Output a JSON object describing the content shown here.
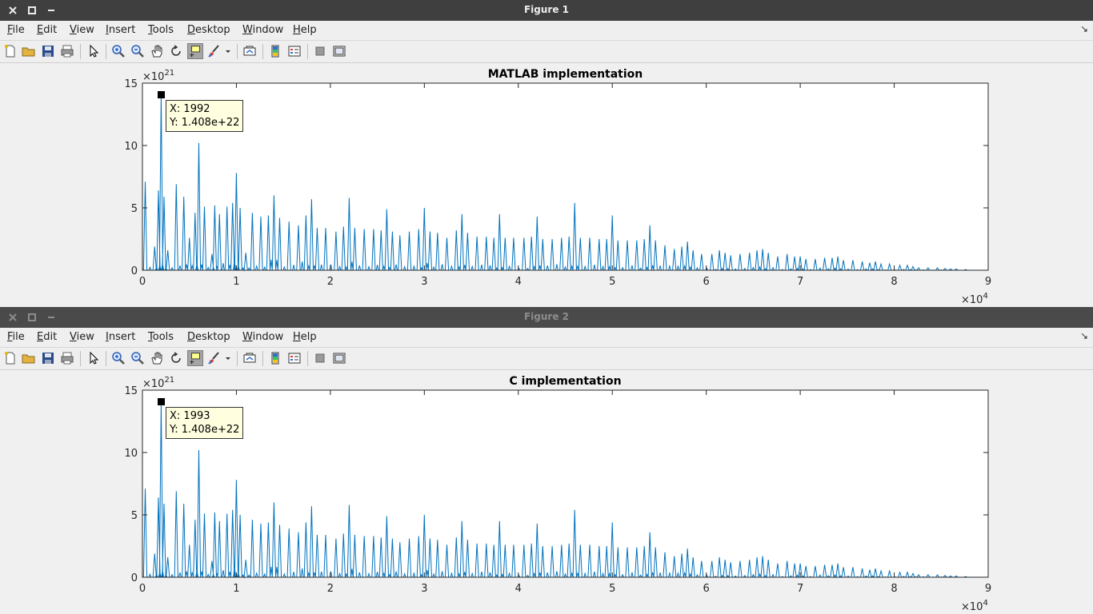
{
  "menu": [
    "File",
    "Edit",
    "View",
    "Insert",
    "Tools",
    "Desktop",
    "Window",
    "Help"
  ],
  "figures": [
    {
      "window_title": "Figure 1",
      "datatip": {
        "x_text": "X: 1992",
        "y_text": "Y: 1.408e+22"
      },
      "chart_data": {
        "type": "line",
        "title": "MATLAB implementation",
        "xlabel": "",
        "ylabel": "",
        "xlim": [
          0,
          9
        ],
        "ylim": [
          0,
          15
        ],
        "x_multiplier": "×10^4",
        "y_multiplier": "×10^21",
        "x_ticks": [
          "0",
          "1",
          "2",
          "3",
          "4",
          "5",
          "6",
          "7",
          "8",
          "9"
        ],
        "y_ticks": [
          "0",
          "5",
          "10",
          "15"
        ],
        "color": "#0072bd",
        "peaks": [
          [
            0.03,
            7.1
          ],
          [
            0.13,
            1.9
          ],
          [
            0.17,
            6.4
          ],
          [
            0.1992,
            14.08
          ],
          [
            0.23,
            5.9
          ],
          [
            0.27,
            1.6
          ],
          [
            0.36,
            6.9
          ],
          [
            0.44,
            5.9
          ],
          [
            0.5,
            2.6
          ],
          [
            0.56,
            4.6
          ],
          [
            0.6,
            10.2
          ],
          [
            0.66,
            5.1
          ],
          [
            0.74,
            1.3
          ],
          [
            0.77,
            5.2
          ],
          [
            0.82,
            4.5
          ],
          [
            0.9,
            5.1
          ],
          [
            0.96,
            5.4
          ],
          [
            1.0,
            7.8
          ],
          [
            1.04,
            5.0
          ],
          [
            1.1,
            1.4
          ],
          [
            1.17,
            4.6
          ],
          [
            1.26,
            4.3
          ],
          [
            1.34,
            4.4
          ],
          [
            1.4,
            6.0
          ],
          [
            1.46,
            4.2
          ],
          [
            1.56,
            3.9
          ],
          [
            1.66,
            3.6
          ],
          [
            1.74,
            4.4
          ],
          [
            1.8,
            5.7
          ],
          [
            1.86,
            3.4
          ],
          [
            1.95,
            3.4
          ],
          [
            2.06,
            3.1
          ],
          [
            2.14,
            3.5
          ],
          [
            2.2,
            5.8
          ],
          [
            2.26,
            3.4
          ],
          [
            2.36,
            3.3
          ],
          [
            2.46,
            3.3
          ],
          [
            2.54,
            3.2
          ],
          [
            2.6,
            4.9
          ],
          [
            2.66,
            3.1
          ],
          [
            2.74,
            2.8
          ],
          [
            2.84,
            3.1
          ],
          [
            2.94,
            3.3
          ],
          [
            3.0,
            5.0
          ],
          [
            3.06,
            3.1
          ],
          [
            3.14,
            3.0
          ],
          [
            3.24,
            2.6
          ],
          [
            3.34,
            3.2
          ],
          [
            3.4,
            4.5
          ],
          [
            3.46,
            3.0
          ],
          [
            3.56,
            2.7
          ],
          [
            3.66,
            2.7
          ],
          [
            3.74,
            2.6
          ],
          [
            3.8,
            4.5
          ],
          [
            3.86,
            2.6
          ],
          [
            3.95,
            2.6
          ],
          [
            4.06,
            2.6
          ],
          [
            4.14,
            2.7
          ],
          [
            4.2,
            4.3
          ],
          [
            4.26,
            2.5
          ],
          [
            4.36,
            2.5
          ],
          [
            4.46,
            2.6
          ],
          [
            4.54,
            2.7
          ],
          [
            4.6,
            5.4
          ],
          [
            4.66,
            2.6
          ],
          [
            4.76,
            2.6
          ],
          [
            4.86,
            2.5
          ],
          [
            4.94,
            2.5
          ],
          [
            5.0,
            4.4
          ],
          [
            5.06,
            2.4
          ],
          [
            5.16,
            2.4
          ],
          [
            5.26,
            2.4
          ],
          [
            5.34,
            2.5
          ],
          [
            5.4,
            3.6
          ],
          [
            5.46,
            2.4
          ],
          [
            5.56,
            2.0
          ],
          [
            5.66,
            1.7
          ],
          [
            5.74,
            1.9
          ],
          [
            5.8,
            2.3
          ],
          [
            5.86,
            1.6
          ],
          [
            5.95,
            1.3
          ],
          [
            6.06,
            1.3
          ],
          [
            6.14,
            1.6
          ],
          [
            6.2,
            1.4
          ],
          [
            6.26,
            1.2
          ],
          [
            6.36,
            1.3
          ],
          [
            6.46,
            1.4
          ],
          [
            6.54,
            1.6
          ],
          [
            6.6,
            1.7
          ],
          [
            6.66,
            1.4
          ],
          [
            6.76,
            1.1
          ],
          [
            6.86,
            1.3
          ],
          [
            6.94,
            1.1
          ],
          [
            7.0,
            1.1
          ],
          [
            7.06,
            0.9
          ],
          [
            7.16,
            0.9
          ],
          [
            7.26,
            1.0
          ],
          [
            7.34,
            1.0
          ],
          [
            7.4,
            1.1
          ],
          [
            7.46,
            0.8
          ],
          [
            7.56,
            0.8
          ],
          [
            7.66,
            0.7
          ],
          [
            7.74,
            0.6
          ],
          [
            7.8,
            0.7
          ],
          [
            7.86,
            0.5
          ],
          [
            7.95,
            0.5
          ],
          [
            8.06,
            0.4
          ],
          [
            8.14,
            0.4
          ],
          [
            8.2,
            0.3
          ],
          [
            8.26,
            0.2
          ],
          [
            8.36,
            0.2
          ],
          [
            8.46,
            0.2
          ],
          [
            8.54,
            0.15
          ],
          [
            8.6,
            0.1
          ],
          [
            8.66,
            0.1
          ],
          [
            8.76,
            0.05
          ]
        ]
      }
    },
    {
      "window_title": "Figure 2",
      "datatip": {
        "x_text": "X: 1993",
        "y_text": "Y: 1.408e+22"
      },
      "chart_data": {
        "type": "line",
        "title": "C implementation",
        "xlabel": "",
        "ylabel": "",
        "xlim": [
          0,
          9
        ],
        "ylim": [
          0,
          15
        ],
        "x_multiplier": "×10^4",
        "y_multiplier": "×10^21",
        "x_ticks": [
          "0",
          "1",
          "2",
          "3",
          "4",
          "5",
          "6",
          "7",
          "8",
          "9"
        ],
        "y_ticks": [
          "0",
          "5",
          "10",
          "15"
        ],
        "color": "#0072bd",
        "peaks": [
          [
            0.03,
            7.1
          ],
          [
            0.13,
            1.9
          ],
          [
            0.17,
            6.4
          ],
          [
            0.1993,
            14.08
          ],
          [
            0.23,
            5.9
          ],
          [
            0.27,
            1.6
          ],
          [
            0.36,
            6.9
          ],
          [
            0.44,
            5.9
          ],
          [
            0.5,
            2.6
          ],
          [
            0.56,
            4.6
          ],
          [
            0.6,
            10.2
          ],
          [
            0.66,
            5.1
          ],
          [
            0.74,
            1.3
          ],
          [
            0.77,
            5.2
          ],
          [
            0.82,
            4.5
          ],
          [
            0.9,
            5.1
          ],
          [
            0.96,
            5.4
          ],
          [
            1.0,
            7.8
          ],
          [
            1.04,
            5.0
          ],
          [
            1.1,
            1.4
          ],
          [
            1.17,
            4.6
          ],
          [
            1.26,
            4.3
          ],
          [
            1.34,
            4.4
          ],
          [
            1.4,
            6.0
          ],
          [
            1.46,
            4.2
          ],
          [
            1.56,
            3.9
          ],
          [
            1.66,
            3.6
          ],
          [
            1.74,
            4.4
          ],
          [
            1.8,
            5.7
          ],
          [
            1.86,
            3.4
          ],
          [
            1.95,
            3.4
          ],
          [
            2.06,
            3.1
          ],
          [
            2.14,
            3.5
          ],
          [
            2.2,
            5.8
          ],
          [
            2.26,
            3.4
          ],
          [
            2.36,
            3.3
          ],
          [
            2.46,
            3.3
          ],
          [
            2.54,
            3.2
          ],
          [
            2.6,
            4.9
          ],
          [
            2.66,
            3.1
          ],
          [
            2.74,
            2.8
          ],
          [
            2.84,
            3.1
          ],
          [
            2.94,
            3.3
          ],
          [
            3.0,
            5.0
          ],
          [
            3.06,
            3.1
          ],
          [
            3.14,
            3.0
          ],
          [
            3.24,
            2.6
          ],
          [
            3.34,
            3.2
          ],
          [
            3.4,
            4.5
          ],
          [
            3.46,
            3.0
          ],
          [
            3.56,
            2.7
          ],
          [
            3.66,
            2.7
          ],
          [
            3.74,
            2.6
          ],
          [
            3.8,
            4.5
          ],
          [
            3.86,
            2.6
          ],
          [
            3.95,
            2.6
          ],
          [
            4.06,
            2.6
          ],
          [
            4.14,
            2.7
          ],
          [
            4.2,
            4.3
          ],
          [
            4.26,
            2.5
          ],
          [
            4.36,
            2.5
          ],
          [
            4.46,
            2.6
          ],
          [
            4.54,
            2.7
          ],
          [
            4.6,
            5.4
          ],
          [
            4.66,
            2.6
          ],
          [
            4.76,
            2.6
          ],
          [
            4.86,
            2.5
          ],
          [
            4.94,
            2.5
          ],
          [
            5.0,
            4.4
          ],
          [
            5.06,
            2.4
          ],
          [
            5.16,
            2.4
          ],
          [
            5.26,
            2.4
          ],
          [
            5.34,
            2.5
          ],
          [
            5.4,
            3.6
          ],
          [
            5.46,
            2.4
          ],
          [
            5.56,
            2.0
          ],
          [
            5.66,
            1.7
          ],
          [
            5.74,
            1.9
          ],
          [
            5.8,
            2.3
          ],
          [
            5.86,
            1.6
          ],
          [
            5.95,
            1.3
          ],
          [
            6.06,
            1.3
          ],
          [
            6.14,
            1.6
          ],
          [
            6.2,
            1.4
          ],
          [
            6.26,
            1.2
          ],
          [
            6.36,
            1.3
          ],
          [
            6.46,
            1.4
          ],
          [
            6.54,
            1.6
          ],
          [
            6.6,
            1.7
          ],
          [
            6.66,
            1.4
          ],
          [
            6.76,
            1.1
          ],
          [
            6.86,
            1.3
          ],
          [
            6.94,
            1.1
          ],
          [
            7.0,
            1.1
          ],
          [
            7.06,
            0.9
          ],
          [
            7.16,
            0.9
          ],
          [
            7.26,
            1.0
          ],
          [
            7.34,
            1.0
          ],
          [
            7.4,
            1.1
          ],
          [
            7.46,
            0.8
          ],
          [
            7.56,
            0.8
          ],
          [
            7.66,
            0.7
          ],
          [
            7.74,
            0.6
          ],
          [
            7.8,
            0.7
          ],
          [
            7.86,
            0.5
          ],
          [
            7.95,
            0.5
          ],
          [
            8.06,
            0.4
          ],
          [
            8.14,
            0.4
          ],
          [
            8.2,
            0.3
          ],
          [
            8.26,
            0.2
          ],
          [
            8.36,
            0.2
          ],
          [
            8.46,
            0.2
          ],
          [
            8.54,
            0.15
          ],
          [
            8.6,
            0.1
          ],
          [
            8.66,
            0.1
          ],
          [
            8.76,
            0.05
          ]
        ]
      }
    }
  ]
}
